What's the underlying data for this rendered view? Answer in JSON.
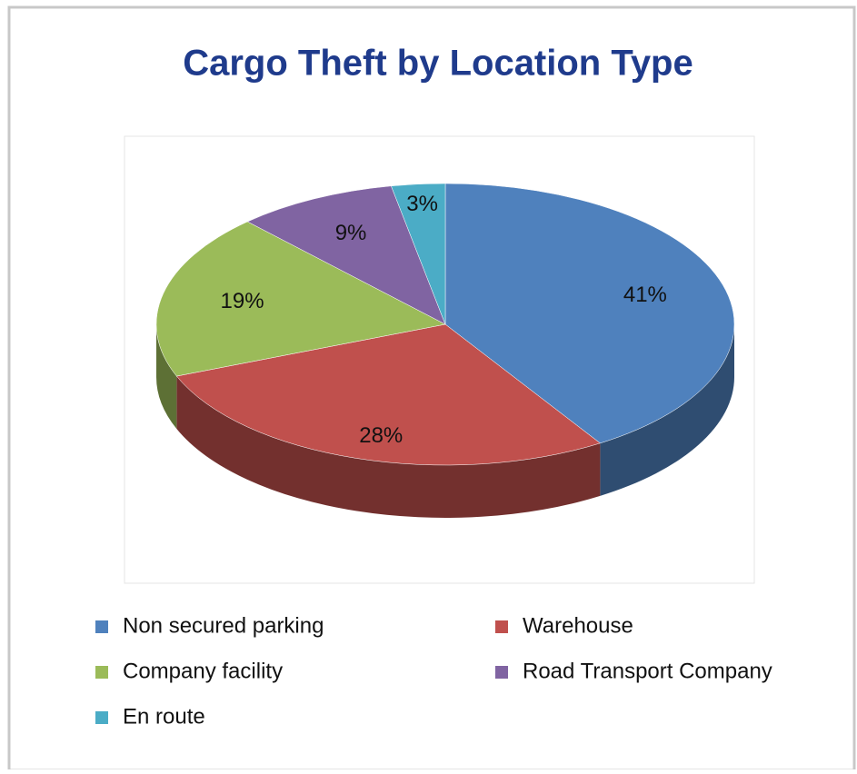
{
  "chart_data": {
    "type": "pie3d",
    "title": "Cargo Theft by Location Type",
    "categories": [
      "Non secured parking",
      "Warehouse",
      "Company facility",
      "Road Transport Company",
      "En route"
    ],
    "values": [
      41,
      28,
      19,
      9,
      3
    ],
    "value_labels": [
      "41%",
      "28%",
      "19%",
      "9%",
      "3%"
    ],
    "colors": [
      "#4f81bd",
      "#c0504d",
      "#9bbb59",
      "#8064a2",
      "#4bacc6"
    ],
    "legend": "bottom"
  }
}
